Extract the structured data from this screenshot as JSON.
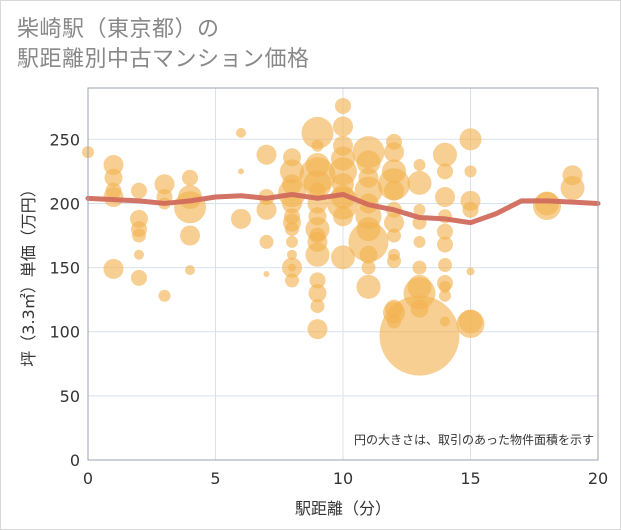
{
  "title": {
    "line1": "柴崎駅（東京都）の",
    "line2": "駅距離別中古マンション価格"
  },
  "note": "円の大きさは、取引のあった物件面積を示す",
  "colors": {
    "bubble": "#f2b24f",
    "line": "#d16b5d",
    "grid": "#d9e2ec",
    "plot_border": "#9aa3b0"
  },
  "chart_data": {
    "type": "scatter",
    "xlabel": "駅距離（分）",
    "ylabel": "坪（3.3㎡）単価（万円）",
    "xlim": [
      0,
      20
    ],
    "ylim": [
      0,
      290
    ],
    "xticks": [
      0,
      5,
      10,
      15,
      20
    ],
    "yticks": [
      0,
      50,
      100,
      150,
      200,
      250
    ],
    "average_line": [
      [
        0,
        204
      ],
      [
        1,
        203
      ],
      [
        2,
        202
      ],
      [
        3,
        200
      ],
      [
        4,
        202
      ],
      [
        5,
        205
      ],
      [
        6,
        206
      ],
      [
        7,
        204
      ],
      [
        8,
        207
      ],
      [
        9,
        204
      ],
      [
        10,
        207
      ],
      [
        11,
        199
      ],
      [
        12,
        195
      ],
      [
        13,
        189
      ],
      [
        14,
        188
      ],
      [
        15,
        185
      ],
      [
        16,
        192
      ],
      [
        17,
        202
      ],
      [
        18,
        202
      ],
      [
        19,
        201
      ],
      [
        20,
        200
      ]
    ],
    "bubbles": [
      [
        0,
        240,
        6
      ],
      [
        1,
        230,
        10
      ],
      [
        1,
        220,
        9
      ],
      [
        1,
        210,
        8
      ],
      [
        1,
        205,
        10
      ],
      [
        1,
        149,
        10
      ],
      [
        2,
        210,
        8
      ],
      [
        2,
        188,
        9
      ],
      [
        2,
        180,
        8
      ],
      [
        2,
        175,
        7
      ],
      [
        2,
        160,
        5
      ],
      [
        2,
        142,
        8
      ],
      [
        3,
        215,
        10
      ],
      [
        3,
        205,
        8
      ],
      [
        3,
        200,
        6
      ],
      [
        3,
        128,
        6
      ],
      [
        4,
        220,
        8
      ],
      [
        4,
        205,
        12
      ],
      [
        4,
        197,
        16
      ],
      [
        4,
        175,
        10
      ],
      [
        4,
        148,
        5
      ],
      [
        6,
        255,
        5
      ],
      [
        6,
        225,
        3
      ],
      [
        6,
        188,
        10
      ],
      [
        7,
        238,
        10
      ],
      [
        7,
        205,
        8
      ],
      [
        7,
        195,
        10
      ],
      [
        7,
        170,
        7
      ],
      [
        7,
        145,
        3
      ],
      [
        8,
        236,
        9
      ],
      [
        8,
        225,
        12
      ],
      [
        8,
        215,
        10
      ],
      [
        8,
        208,
        14
      ],
      [
        8,
        200,
        10
      ],
      [
        8,
        190,
        8
      ],
      [
        8,
        185,
        9
      ],
      [
        8,
        180,
        7
      ],
      [
        8,
        170,
        6
      ],
      [
        8,
        160,
        5
      ],
      [
        8,
        150,
        4
      ],
      [
        8,
        140,
        7
      ],
      [
        8,
        150,
        10
      ],
      [
        9,
        255,
        16
      ],
      [
        9,
        245,
        6
      ],
      [
        9,
        230,
        12
      ],
      [
        9,
        222,
        18
      ],
      [
        9,
        215,
        14
      ],
      [
        9,
        210,
        8
      ],
      [
        9,
        200,
        10
      ],
      [
        9,
        190,
        9
      ],
      [
        9,
        180,
        12
      ],
      [
        9,
        175,
        8
      ],
      [
        9,
        170,
        10
      ],
      [
        9,
        160,
        12
      ],
      [
        9,
        140,
        8
      ],
      [
        9,
        130,
        9
      ],
      [
        9,
        120,
        7
      ],
      [
        9,
        102,
        10
      ],
      [
        10,
        276,
        8
      ],
      [
        10,
        260,
        10
      ],
      [
        10,
        245,
        10
      ],
      [
        10,
        235,
        12
      ],
      [
        10,
        225,
        14
      ],
      [
        10,
        215,
        11
      ],
      [
        10,
        205,
        12
      ],
      [
        10,
        200,
        16
      ],
      [
        10,
        190,
        10
      ],
      [
        10,
        158,
        12
      ],
      [
        11,
        240,
        16
      ],
      [
        11,
        232,
        12
      ],
      [
        11,
        220,
        10
      ],
      [
        11,
        210,
        14
      ],
      [
        11,
        200,
        10
      ],
      [
        11,
        190,
        13
      ],
      [
        11,
        180,
        12
      ],
      [
        11,
        170,
        20
      ],
      [
        11,
        160,
        9
      ],
      [
        11,
        150,
        7
      ],
      [
        11,
        135,
        12
      ],
      [
        12,
        248,
        8
      ],
      [
        12,
        240,
        10
      ],
      [
        12,
        225,
        12
      ],
      [
        12,
        215,
        16
      ],
      [
        12,
        210,
        10
      ],
      [
        12,
        195,
        8
      ],
      [
        12,
        185,
        10
      ],
      [
        12,
        175,
        7
      ],
      [
        12,
        160,
        6
      ],
      [
        12,
        155,
        7
      ],
      [
        12,
        118,
        9
      ],
      [
        12,
        115,
        11
      ],
      [
        12,
        108,
        7
      ],
      [
        13,
        230,
        6
      ],
      [
        13,
        216,
        12
      ],
      [
        13,
        195,
        6
      ],
      [
        13,
        185,
        7
      ],
      [
        13,
        170,
        6
      ],
      [
        13,
        150,
        7
      ],
      [
        13,
        135,
        12
      ],
      [
        13,
        130,
        16
      ],
      [
        13,
        118,
        9
      ],
      [
        13,
        97,
        40
      ],
      [
        14,
        238,
        12
      ],
      [
        14,
        225,
        8
      ],
      [
        14,
        205,
        10
      ],
      [
        14,
        190,
        7
      ],
      [
        14,
        178,
        8
      ],
      [
        14,
        168,
        8
      ],
      [
        14,
        152,
        7
      ],
      [
        14,
        138,
        8
      ],
      [
        14,
        135,
        6
      ],
      [
        14,
        128,
        6
      ],
      [
        14,
        108,
        5
      ],
      [
        15,
        250,
        11
      ],
      [
        15,
        225,
        6
      ],
      [
        15,
        202,
        10
      ],
      [
        15,
        195,
        8
      ],
      [
        15,
        147,
        4
      ],
      [
        15,
        108,
        12
      ],
      [
        15,
        106,
        14
      ],
      [
        18,
        200,
        12
      ],
      [
        18,
        198,
        14
      ],
      [
        19,
        222,
        10
      ],
      [
        19,
        212,
        12
      ]
    ]
  }
}
